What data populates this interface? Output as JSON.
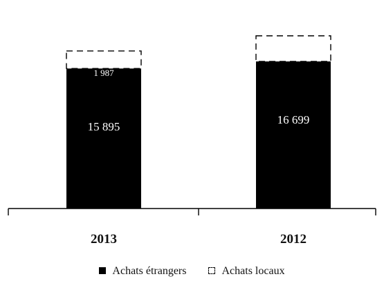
{
  "chart_data": {
    "type": "bar",
    "stacked": true,
    "categories": [
      "2013",
      "2012"
    ],
    "series": [
      {
        "name": "Achats étrangers",
        "values": [
          15895,
          16699
        ],
        "color": "#000000"
      },
      {
        "name": "Achats locaux",
        "values": [
          1987,
          2900
        ],
        "color": "#ffffff"
      }
    ],
    "data_labels": {
      "main": [
        "15 895",
        "16 699"
      ],
      "top": [
        "1 987",
        ""
      ]
    },
    "legend_position": "bottom",
    "grid": false,
    "ylim": [
      0,
      21000
    ]
  }
}
